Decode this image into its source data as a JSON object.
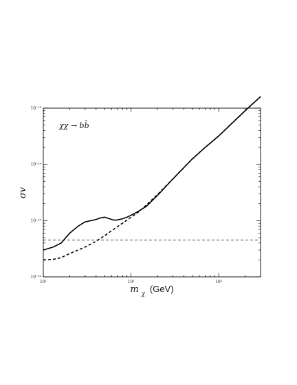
{
  "chart_data": {
    "type": "line",
    "xlabel_symbol": "m",
    "xlabel_sub": "χ",
    "xlabel_unit": "(GeV)",
    "ylabel": "σv",
    "annotation": "χχ → bb̄",
    "x_scale": "log",
    "y_scale": "log",
    "xlim": [
      10,
      3000
    ],
    "ylim": [
      1e-26,
      1e-23
    ],
    "x_tick_labels": [
      "10¹",
      "10²",
      "10³"
    ],
    "y_tick_labels": [
      "10⁻²³",
      "10⁻²⁴",
      "10⁻²⁵",
      "10⁻²⁶"
    ],
    "grid": false,
    "series": [
      {
        "style": "solid",
        "color": "#000000",
        "points": [
          [
            10,
            3e-26
          ],
          [
            13,
            3.4e-26
          ],
          [
            16,
            4e-26
          ],
          [
            20,
            6e-26
          ],
          [
            25,
            8e-26
          ],
          [
            30,
            9.5e-26
          ],
          [
            35,
            1e-25
          ],
          [
            40,
            1.05e-25
          ],
          [
            45,
            1.12e-25
          ],
          [
            50,
            1.15e-25
          ],
          [
            55,
            1.1e-25
          ],
          [
            60,
            1.05e-25
          ],
          [
            65,
            1.02e-25
          ],
          [
            70,
            1.03e-25
          ],
          [
            80,
            1.08e-25
          ],
          [
            90,
            1.15e-25
          ],
          [
            100,
            1.25e-25
          ],
          [
            120,
            1.45e-25
          ],
          [
            150,
            1.8e-25
          ],
          [
            200,
            2.8e-25
          ],
          [
            300,
            5.5e-25
          ],
          [
            500,
            1.25e-24
          ],
          [
            700,
            2e-24
          ],
          [
            1000,
            3.2e-24
          ],
          [
            2000,
            9e-24
          ],
          [
            3000,
            1.6e-23
          ]
        ]
      },
      {
        "style": "dashed",
        "color": "#000000",
        "points": [
          [
            10,
            2e-26
          ],
          [
            13,
            2.05e-26
          ],
          [
            16,
            2.2e-26
          ],
          [
            20,
            2.6e-26
          ],
          [
            30,
            3.4e-26
          ],
          [
            40,
            4.3e-26
          ],
          [
            50,
            5.4e-26
          ],
          [
            60,
            6.6e-26
          ],
          [
            70,
            7.8e-26
          ],
          [
            80,
            9e-26
          ],
          [
            100,
            1.15e-25
          ],
          [
            120,
            1.4e-25
          ],
          [
            150,
            1.9e-25
          ],
          [
            200,
            2.9e-25
          ],
          [
            300,
            5.5e-25
          ],
          [
            500,
            1.25e-24
          ],
          [
            700,
            2e-24
          ],
          [
            1000,
            3.2e-24
          ],
          [
            2000,
            9e-24
          ],
          [
            3000,
            1.6e-23
          ]
        ]
      },
      {
        "style": "thin-dashed",
        "color": "#000000",
        "points": [
          [
            10,
            4.5e-26
          ],
          [
            3000,
            4.5e-26
          ]
        ]
      }
    ]
  }
}
